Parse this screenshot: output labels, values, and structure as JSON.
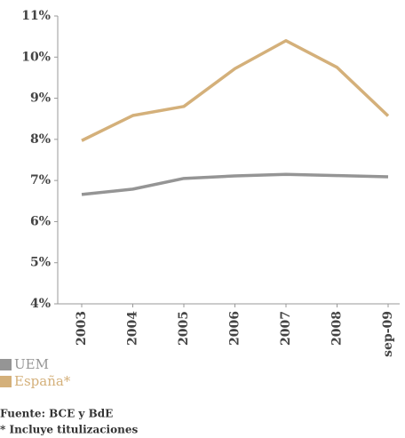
{
  "chart_data": {
    "type": "line",
    "categories": [
      "2003",
      "2004",
      "2005",
      "2006",
      "2007",
      "2008",
      "sep-09"
    ],
    "series": [
      {
        "name": "UEM",
        "color": "#959595",
        "values": [
          6.66,
          6.79,
          7.05,
          7.11,
          7.15,
          7.12,
          7.09
        ]
      },
      {
        "name": "España*",
        "color": "#d4b07a",
        "values": [
          7.97,
          8.58,
          8.8,
          9.72,
          10.4,
          9.75,
          8.57
        ]
      }
    ],
    "ylim": [
      4,
      11
    ],
    "yticks": [
      {
        "value": 4,
        "label": "4%"
      },
      {
        "value": 5,
        "label": "5%"
      },
      {
        "value": 6,
        "label": "6%"
      },
      {
        "value": 7,
        "label": "7%"
      },
      {
        "value": 8,
        "label": "8%"
      },
      {
        "value": 9,
        "label": "9%"
      },
      {
        "value": 10,
        "label": "10%"
      },
      {
        "value": 11,
        "label": "11%"
      }
    ],
    "grid": false,
    "legend": "bottom-left",
    "notes": [
      "Fuente: BCE y BdE",
      "* Incluye titulizaciones"
    ]
  }
}
